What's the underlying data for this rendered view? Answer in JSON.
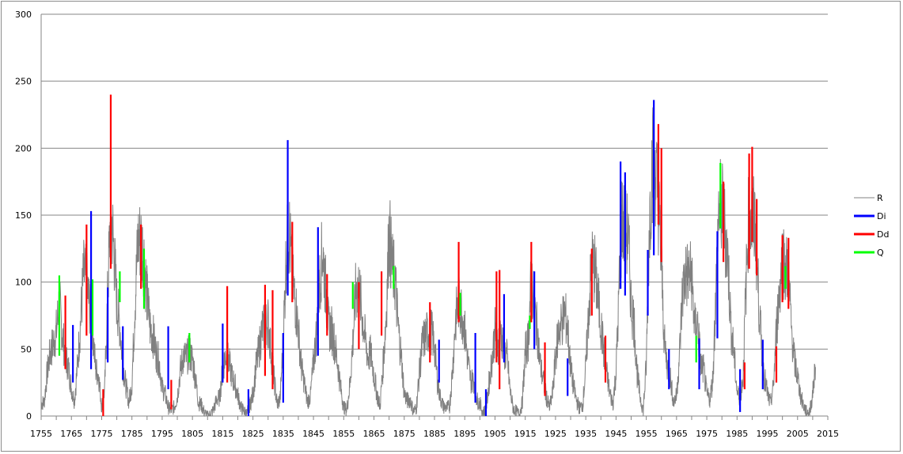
{
  "chart_data": {
    "type": "line",
    "title": "",
    "xlabel": "",
    "ylabel": "",
    "xlim": [
      1755,
      2015
    ],
    "ylim": [
      0,
      300
    ],
    "x_ticks": [
      1755,
      1765,
      1775,
      1785,
      1795,
      1805,
      1815,
      1825,
      1835,
      1845,
      1855,
      1865,
      1875,
      1885,
      1895,
      1905,
      1915,
      1925,
      1935,
      1945,
      1955,
      1965,
      1975,
      1985,
      1995,
      2005,
      2015
    ],
    "y_ticks": [
      0,
      50,
      100,
      150,
      200,
      250,
      300
    ],
    "grid": "horizontal",
    "legend_position": "right",
    "legend": [
      {
        "name": "R",
        "color": "#808080"
      },
      {
        "name": "Di",
        "color": "#0000ff"
      },
      {
        "name": "Dd",
        "color": "#ff0000"
      },
      {
        "name": "Q",
        "color": "#00ff00"
      }
    ],
    "series_R": {
      "name": "R",
      "start_year": 1755,
      "values": [
        9.6,
        10.2,
        32.4,
        47.6,
        54,
        62.9,
        85.9,
        61.2,
        45.1,
        36.4,
        20.9,
        11.4,
        37.8,
        69.8,
        106.1,
        100.8,
        81.6,
        66.5,
        34.8,
        30.6,
        7,
        19.8,
        92.5,
        154.4,
        125.9,
        84.8,
        68.1,
        38.5,
        22.8,
        10.2,
        24.1,
        82.9,
        132,
        130.9,
        118.1,
        89.9,
        66.6,
        60,
        46.9,
        41,
        21.3,
        16,
        6.4,
        4.1,
        6.8,
        14.5,
        34,
        45,
        43.1,
        47.5,
        42.2,
        28.1,
        10.1,
        8.1,
        2.5,
        0,
        1.4,
        5,
        12.2,
        13.9,
        35.4,
        45.8,
        41.1,
        30.1,
        23.9,
        15.6,
        6.6,
        4,
        1.8,
        8.5,
        16.6,
        36.3,
        49.6,
        64.2,
        67,
        70.9,
        47.8,
        27.5,
        8.5,
        13.2,
        56.9,
        121.5,
        138.3,
        103.2,
        85.7,
        64.6,
        36.7,
        24.2,
        10.7,
        15,
        40.1,
        61.5,
        98.5,
        124.7,
        96.3,
        66.6,
        64.5,
        54.1,
        39,
        20.6,
        6.7,
        4.3,
        22.7,
        54.8,
        93.8,
        95.8,
        77.2,
        59.1,
        44,
        47,
        30.5,
        16.3,
        7.3,
        37.6,
        74,
        139,
        111.2,
        101.6,
        66.2,
        44.7,
        17,
        11.3,
        12.4,
        3.4,
        6,
        32.3,
        54.3,
        59.7,
        63.7,
        63.5,
        52.2,
        25.4,
        13.1,
        6.8,
        6.3,
        7.1,
        35.6,
        73,
        85.1,
        78,
        64,
        41.8,
        26.2,
        26.7,
        12.1,
        9.5,
        2.7,
        5,
        24.4,
        42,
        63.5,
        53.8,
        62,
        48.5,
        43.9,
        18.6,
        5.7,
        3.6,
        1.4,
        9.6,
        47.4,
        57.1,
        103.9,
        80.6,
        63.6,
        37.6,
        26.1,
        14.2,
        5.8,
        16.7,
        44.3,
        63.9,
        69,
        77.8,
        64.9,
        35.7,
        21.2,
        11.1,
        5.7,
        8.7,
        36.1,
        79.7,
        114.4,
        109.6,
        88.8,
        67.8,
        47.5,
        30.6,
        16.3,
        9.6,
        33.2,
        92.6,
        151.6,
        136.3,
        134.7,
        83.9,
        69.4,
        31.5,
        13.9,
        4.4,
        38,
        141.7,
        190.2,
        184.8,
        159,
        112.3,
        53.9,
        37.6,
        27.9,
        10.2,
        15.1,
        47,
        93.8,
        105.9,
        105.5,
        104.5,
        66.6,
        68.9,
        38,
        34.5,
        15.5,
        12.6,
        27.5,
        92.5,
        155.4,
        154.6,
        140.4,
        115.9,
        66.6,
        45.9,
        17.9,
        13.4,
        29.4,
        100.2,
        157.6,
        142.6,
        145.7,
        94.3,
        54.6,
        29.9,
        17.5,
        8.6,
        21.5,
        64.3,
        93.3,
        119.6,
        111,
        104,
        63.7,
        40.4,
        29.8,
        15.2,
        7.5,
        2.9,
        3.1,
        16.5,
        40
      ]
    },
    "segments": [
      {
        "series": "Q",
        "year": 1761,
        "low": 45,
        "high": 105
      },
      {
        "series": "Dd",
        "year": 1763,
        "low": 35,
        "high": 90
      },
      {
        "series": "Di",
        "year": 1765.5,
        "low": 25,
        "high": 68
      },
      {
        "series": "Dd",
        "year": 1770,
        "low": 60,
        "high": 143
      },
      {
        "series": "Di",
        "year": 1771.5,
        "low": 35,
        "high": 153
      },
      {
        "series": "Q",
        "year": 1772,
        "low": 60,
        "high": 102
      },
      {
        "series": "Dd",
        "year": 1775.5,
        "low": 0,
        "high": 20
      },
      {
        "series": "Di",
        "year": 1777,
        "low": 40,
        "high": 96
      },
      {
        "series": "Dd",
        "year": 1778,
        "low": 110,
        "high": 240
      },
      {
        "series": "Q",
        "year": 1781,
        "low": 85,
        "high": 108
      },
      {
        "series": "Di",
        "year": 1782,
        "low": 27,
        "high": 67
      },
      {
        "series": "Dd",
        "year": 1788,
        "low": 95,
        "high": 143
      },
      {
        "series": "Q",
        "year": 1789,
        "low": 80,
        "high": 125
      },
      {
        "series": "Di",
        "year": 1797,
        "low": 20,
        "high": 67
      },
      {
        "series": "Dd",
        "year": 1798,
        "low": 5,
        "high": 27
      },
      {
        "series": "Q",
        "year": 1804,
        "low": 40,
        "high": 62
      },
      {
        "series": "Di",
        "year": 1815,
        "low": 25,
        "high": 69
      },
      {
        "series": "Dd",
        "year": 1816.5,
        "low": 25,
        "high": 97
      },
      {
        "series": "Di",
        "year": 1823.5,
        "low": 0,
        "high": 20
      },
      {
        "series": "Dd",
        "year": 1829,
        "low": 30,
        "high": 98
      },
      {
        "series": "Dd",
        "year": 1831.5,
        "low": 20,
        "high": 94
      },
      {
        "series": "Di",
        "year": 1835,
        "low": 10,
        "high": 62
      },
      {
        "series": "Di",
        "year": 1836.5,
        "low": 90,
        "high": 206
      },
      {
        "series": "Dd",
        "year": 1838,
        "low": 85,
        "high": 145
      },
      {
        "series": "Di",
        "year": 1846.5,
        "low": 45,
        "high": 141
      },
      {
        "series": "Dd",
        "year": 1849.5,
        "low": 60,
        "high": 106
      },
      {
        "series": "Q",
        "year": 1858,
        "low": 80,
        "high": 100
      },
      {
        "series": "Dd",
        "year": 1860,
        "low": 50,
        "high": 100
      },
      {
        "series": "Dd",
        "year": 1867.5,
        "low": 60,
        "high": 108
      },
      {
        "series": "Q",
        "year": 1871.5,
        "low": 95,
        "high": 112
      },
      {
        "series": "Dd",
        "year": 1883.5,
        "low": 40,
        "high": 85
      },
      {
        "series": "Di",
        "year": 1886.5,
        "low": 25,
        "high": 57
      },
      {
        "series": "Dd",
        "year": 1893,
        "low": 70,
        "high": 130
      },
      {
        "series": "Q",
        "year": 1893.5,
        "low": 75,
        "high": 92
      },
      {
        "series": "Di",
        "year": 1898.5,
        "low": 10,
        "high": 62
      },
      {
        "series": "Di",
        "year": 1902,
        "low": 0,
        "high": 20
      },
      {
        "series": "Dd",
        "year": 1905.5,
        "low": 40,
        "high": 108
      },
      {
        "series": "Dd",
        "year": 1906.5,
        "low": 20,
        "high": 109
      },
      {
        "series": "Di",
        "year": 1908,
        "low": 40,
        "high": 91
      },
      {
        "series": "Q",
        "year": 1916.5,
        "low": 65,
        "high": 75
      },
      {
        "series": "Dd",
        "year": 1917,
        "low": 70,
        "high": 130
      },
      {
        "series": "Di",
        "year": 1918,
        "low": 50,
        "high": 108
      },
      {
        "series": "Dd",
        "year": 1921.5,
        "low": 15,
        "high": 55
      },
      {
        "series": "Di",
        "year": 1929,
        "low": 15,
        "high": 43
      },
      {
        "series": "Dd",
        "year": 1937,
        "low": 75,
        "high": 125
      },
      {
        "series": "Dd",
        "year": 1941.5,
        "low": 25,
        "high": 60
      },
      {
        "series": "Di",
        "year": 1946.5,
        "low": 95,
        "high": 190
      },
      {
        "series": "Di",
        "year": 1948,
        "low": 90,
        "high": 182
      },
      {
        "series": "Di",
        "year": 1955.5,
        "low": 75,
        "high": 124
      },
      {
        "series": "Di",
        "year": 1957.5,
        "low": 120,
        "high": 236
      },
      {
        "series": "Dd",
        "year": 1959,
        "low": 143,
        "high": 218
      },
      {
        "series": "Dd",
        "year": 1960,
        "low": 115,
        "high": 200
      },
      {
        "series": "Di",
        "year": 1962.5,
        "low": 20,
        "high": 50
      },
      {
        "series": "Q",
        "year": 1971.5,
        "low": 40,
        "high": 60
      },
      {
        "series": "Di",
        "year": 1972.5,
        "low": 20,
        "high": 58
      },
      {
        "series": "Di",
        "year": 1978.5,
        "low": 58,
        "high": 138
      },
      {
        "series": "Q",
        "year": 1979.5,
        "low": 140,
        "high": 189
      },
      {
        "series": "Dd",
        "year": 1980.5,
        "low": 115,
        "high": 175
      },
      {
        "series": "Di",
        "year": 1986,
        "low": 3,
        "high": 35
      },
      {
        "series": "Dd",
        "year": 1987.5,
        "low": 20,
        "high": 40
      },
      {
        "series": "Dd",
        "year": 1989,
        "low": 110,
        "high": 196
      },
      {
        "series": "Dd",
        "year": 1990,
        "low": 130,
        "high": 201
      },
      {
        "series": "Dd",
        "year": 1991.5,
        "low": 105,
        "high": 162
      },
      {
        "series": "Di",
        "year": 1993.5,
        "low": 20,
        "high": 57
      },
      {
        "series": "Dd",
        "year": 1998,
        "low": 25,
        "high": 52
      },
      {
        "series": "Dd",
        "year": 2000,
        "low": 85,
        "high": 135
      },
      {
        "series": "Q",
        "year": 2001,
        "low": 95,
        "high": 112
      },
      {
        "series": "Dd",
        "year": 2002,
        "low": 80,
        "high": 133
      }
    ]
  }
}
